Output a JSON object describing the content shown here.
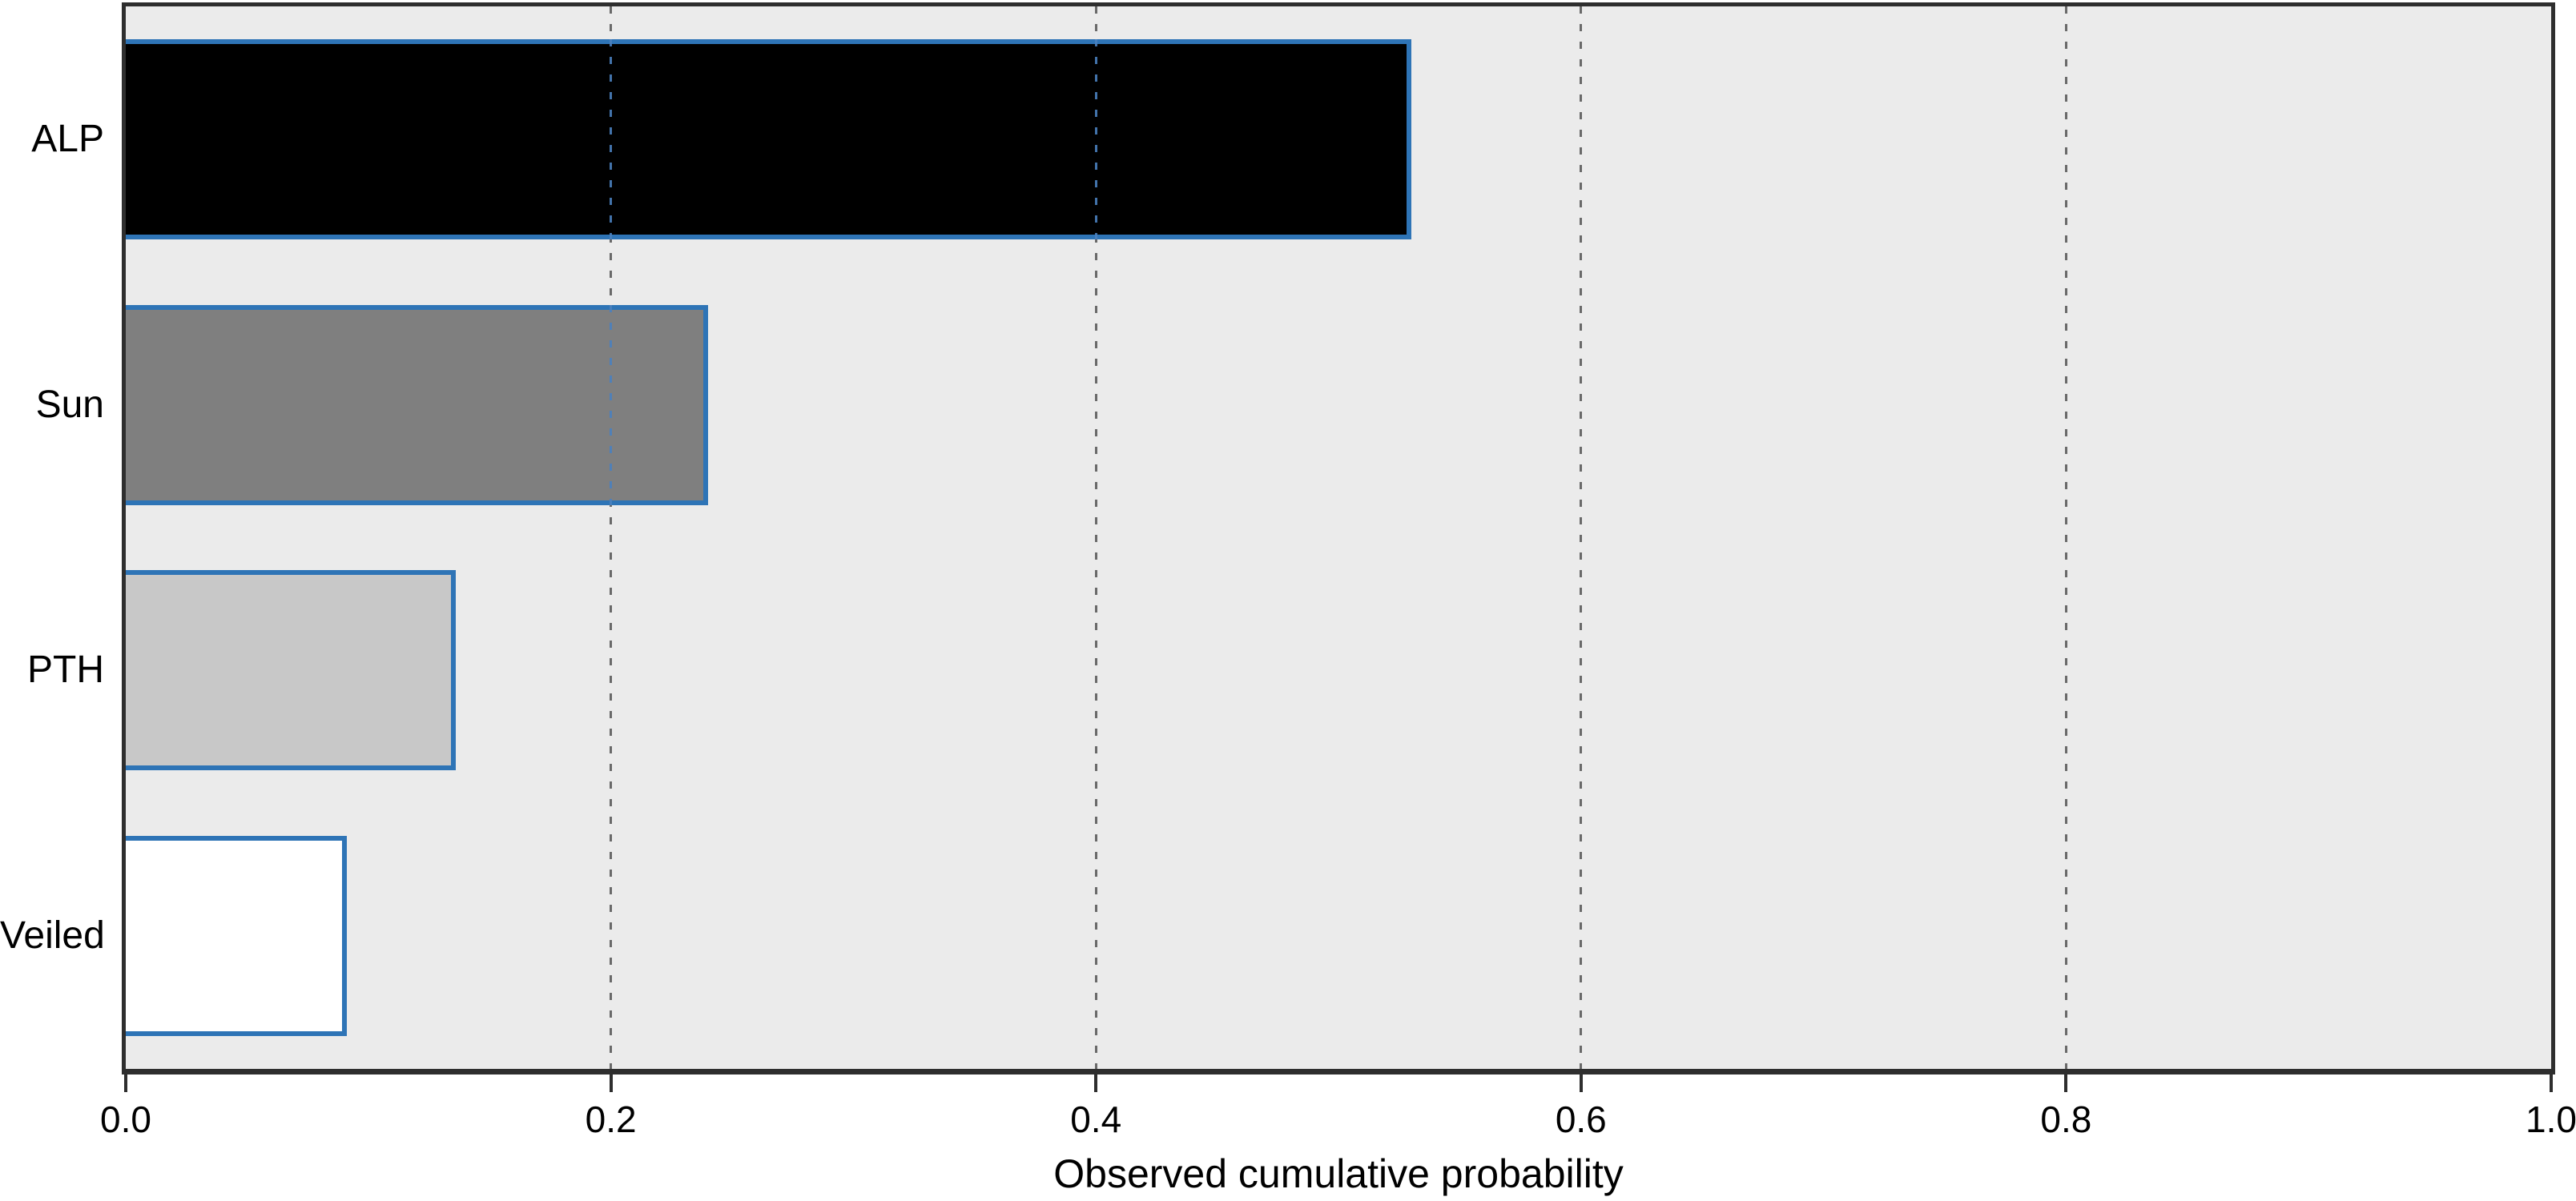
{
  "chart_data": {
    "type": "bar",
    "orientation": "horizontal",
    "title": "",
    "xlabel": "Observed cumulative probability",
    "ylabel": "",
    "categories": [
      "ALP",
      "Sun",
      "PTH",
      "Veiled"
    ],
    "values": [
      0.53,
      0.24,
      0.136,
      0.091
    ],
    "xlim": [
      0.0,
      1.0
    ],
    "xticks": [
      "0.0",
      "0.2",
      "0.4",
      "0.6",
      "0.8",
      "1.0"
    ],
    "xtick_values": [
      0.0,
      0.2,
      0.4,
      0.6,
      0.8,
      1.0
    ],
    "gridline_values": [
      0.2,
      0.4,
      0.6,
      0.8
    ],
    "grid_style": "dashed-vertical",
    "legend": "none",
    "colors": {
      "bar_fills": [
        "#000000",
        "#7f7f7f",
        "#c8c8c8",
        "#ffffff"
      ],
      "bar_edge": "#2e74b6",
      "plot_background": "#ebebeb",
      "page_background": "#ffffff",
      "gridline": "#696969",
      "gridline_over_bar": "#4a80be",
      "spine": "#2e2e2e",
      "text": "#000000"
    }
  }
}
